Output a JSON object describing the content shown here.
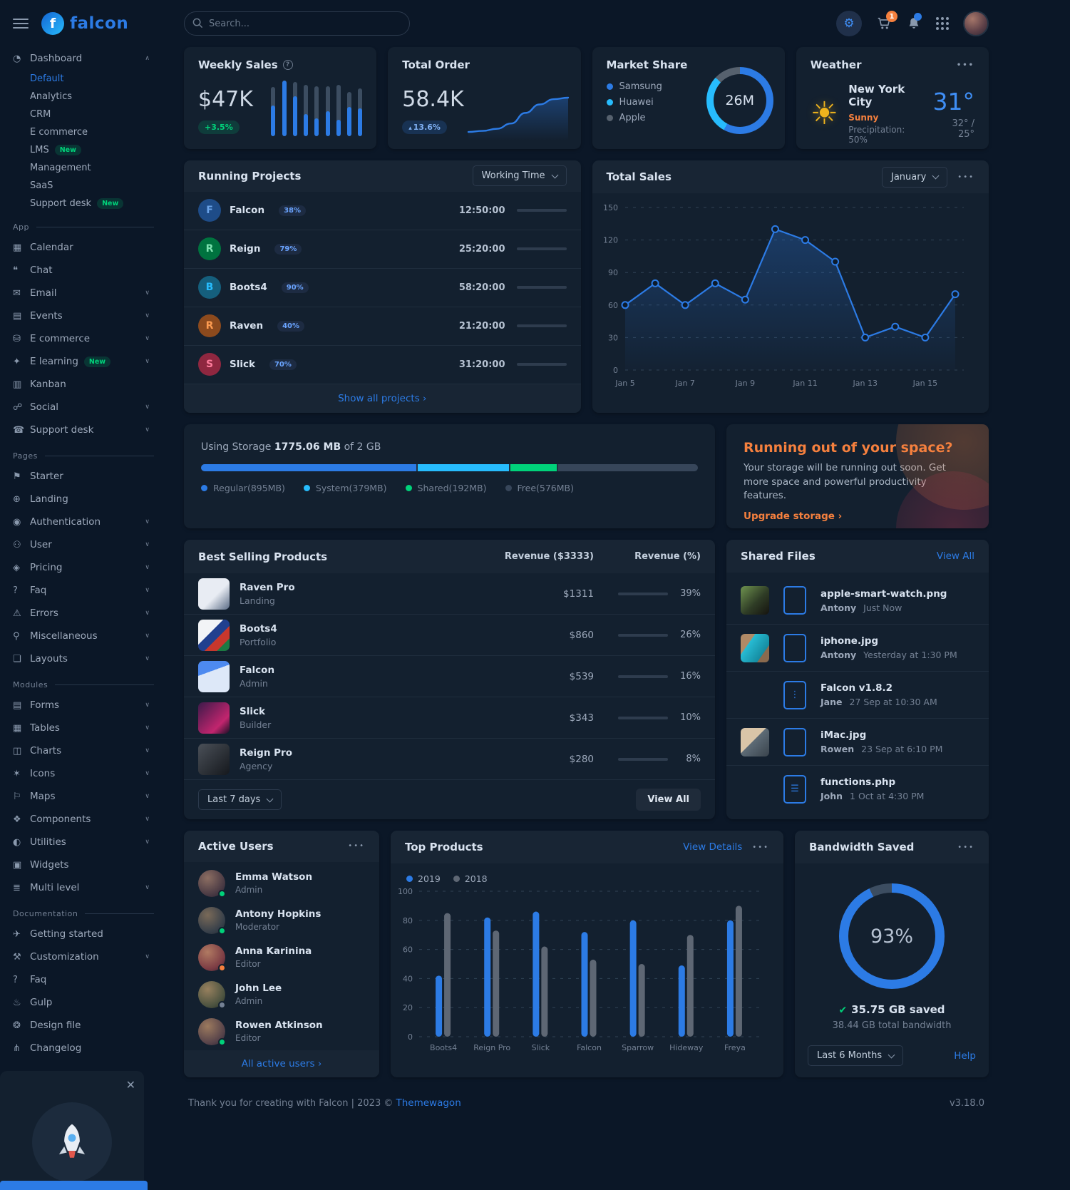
{
  "brand": {
    "name": "falcon"
  },
  "topnav": {
    "search_placeholder": "Search...",
    "cart_badge": "1"
  },
  "sidebar": {
    "dashboard": {
      "icon": "◔",
      "label": "Dashboard",
      "caret": "∧",
      "children": [
        {
          "label": "Default",
          "badge": "",
          "color": "#2c7be5"
        },
        {
          "label": "Analytics",
          "badge": "",
          "color": ""
        },
        {
          "label": "CRM",
          "badge": "",
          "color": ""
        },
        {
          "label": "E commerce",
          "badge": "",
          "color": ""
        },
        {
          "label": "LMS",
          "badge": "New",
          "color": ""
        },
        {
          "label": "Management",
          "badge": "",
          "color": ""
        },
        {
          "label": "SaaS",
          "badge": "",
          "color": ""
        },
        {
          "label": "Support desk",
          "badge": "New",
          "color": ""
        }
      ]
    },
    "sections": [
      {
        "heading": "App",
        "items": [
          {
            "icon": "▦",
            "label": "Calendar",
            "badge": "",
            "caret": ""
          },
          {
            "icon": "❝",
            "label": "Chat",
            "badge": "",
            "caret": ""
          },
          {
            "icon": "✉",
            "label": "Email",
            "badge": "",
            "caret": "∨"
          },
          {
            "icon": "▤",
            "label": "Events",
            "badge": "",
            "caret": "∨"
          },
          {
            "icon": "⛁",
            "label": "E commerce",
            "badge": "",
            "caret": "∨"
          },
          {
            "icon": "✦",
            "label": "E learning",
            "badge": "New",
            "caret": "∨"
          },
          {
            "icon": "▥",
            "label": "Kanban",
            "badge": "",
            "caret": ""
          },
          {
            "icon": "☍",
            "label": "Social",
            "badge": "",
            "caret": "∨"
          },
          {
            "icon": "☎",
            "label": "Support desk",
            "badge": "",
            "caret": "∨"
          }
        ]
      },
      {
        "heading": "Pages",
        "items": [
          {
            "icon": "⚑",
            "label": "Starter",
            "badge": "",
            "caret": ""
          },
          {
            "icon": "⊕",
            "label": "Landing",
            "badge": "",
            "caret": ""
          },
          {
            "icon": "◉",
            "label": "Authentication",
            "badge": "",
            "caret": "∨"
          },
          {
            "icon": "⚇",
            "label": "User",
            "badge": "",
            "caret": "∨"
          },
          {
            "icon": "◈",
            "label": "Pricing",
            "badge": "",
            "caret": "∨"
          },
          {
            "icon": "?",
            "label": "Faq",
            "badge": "",
            "caret": "∨"
          },
          {
            "icon": "⚠",
            "label": "Errors",
            "badge": "",
            "caret": "∨"
          },
          {
            "icon": "⚲",
            "label": "Miscellaneous",
            "badge": "",
            "caret": "∨"
          },
          {
            "icon": "❏",
            "label": "Layouts",
            "badge": "",
            "caret": "∨"
          }
        ]
      },
      {
        "heading": "Modules",
        "items": [
          {
            "icon": "▤",
            "label": "Forms",
            "badge": "",
            "caret": "∨"
          },
          {
            "icon": "▦",
            "label": "Tables",
            "badge": "",
            "caret": "∨"
          },
          {
            "icon": "◫",
            "label": "Charts",
            "badge": "",
            "caret": "∨"
          },
          {
            "icon": "✶",
            "label": "Icons",
            "badge": "",
            "caret": "∨"
          },
          {
            "icon": "⚐",
            "label": "Maps",
            "badge": "",
            "caret": "∨"
          },
          {
            "icon": "❖",
            "label": "Components",
            "badge": "",
            "caret": "∨"
          },
          {
            "icon": "◐",
            "label": "Utilities",
            "badge": "",
            "caret": "∨"
          },
          {
            "icon": "▣",
            "label": "Widgets",
            "badge": "",
            "caret": ""
          },
          {
            "icon": "≣",
            "label": "Multi level",
            "badge": "",
            "caret": "∨"
          }
        ]
      },
      {
        "heading": "Documentation",
        "items": [
          {
            "icon": "✈",
            "label": "Getting started",
            "badge": "",
            "caret": ""
          },
          {
            "icon": "⚒",
            "label": "Customization",
            "badge": "",
            "caret": "∨"
          },
          {
            "icon": "?",
            "label": "Faq",
            "badge": "",
            "caret": ""
          },
          {
            "icon": "♨",
            "label": "Gulp",
            "badge": "",
            "caret": ""
          },
          {
            "icon": "❂",
            "label": "Design file",
            "badge": "",
            "caret": ""
          },
          {
            "icon": "⋔",
            "label": "Changelog",
            "badge": "",
            "caret": ""
          }
        ]
      }
    ]
  },
  "cards": {
    "weekly_sales": {
      "title": "Weekly Sales",
      "value": "$47K",
      "badge": "+3.5%"
    },
    "total_order": {
      "title": "Total Order",
      "value": "58.4K",
      "badge": "13.6%"
    },
    "market_share": {
      "title": "Market Share"
    },
    "weather": {
      "title": "Weather",
      "city": "New York City",
      "condition": "Sunny",
      "precipitation": "Precipitation: 50%",
      "temp": "31°",
      "range": "32° / 25°"
    },
    "running_projects": {
      "title": "Running Projects",
      "filter": "Working Time",
      "footer_link": "Show all projects ›",
      "rows": [
        {
          "initial": "F",
          "name": "Falcon",
          "pct": "38%",
          "time": "12:50:00",
          "bar": "38%",
          "avatar_bg": "#1e4c88",
          "avatar_fg": "#6aa3e8"
        },
        {
          "initial": "R",
          "name": "Reign",
          "pct": "79%",
          "time": "25:20:00",
          "bar": "79%",
          "avatar_bg": "#00733f",
          "avatar_fg": "#7ee2b0"
        },
        {
          "initial": "B",
          "name": "Boots4",
          "pct": "90%",
          "time": "58:20:00",
          "bar": "90%",
          "avatar_bg": "#155f7d",
          "avatar_fg": "#27bcfd"
        },
        {
          "initial": "R",
          "name": "Raven",
          "pct": "40%",
          "time": "21:20:00",
          "bar": "40%",
          "avatar_bg": "#8c4a1d",
          "avatar_fg": "#fd9c51"
        },
        {
          "initial": "S",
          "name": "Slick",
          "pct": "70%",
          "time": "31:20:00",
          "bar": "70%",
          "avatar_bg": "#8f2740",
          "avatar_fg": "#ff7d9d"
        }
      ]
    },
    "total_sales": {
      "title": "Total Sales",
      "filter": "January"
    },
    "storage": {
      "label": "Using Storage",
      "used": "1775.06 MB",
      "of": "of 2 GB",
      "segments": [
        {
          "label": "Regular(895MB)",
          "color": "#2c7be5",
          "pct": "43.7%"
        },
        {
          "label": "System(379MB)",
          "color": "#27bcfd",
          "pct": "18.5%"
        },
        {
          "label": "Shared(192MB)",
          "color": "#00d27a",
          "pct": "9.4%"
        },
        {
          "label": "Free(576MB)",
          "color": "#37465a",
          "pct": "28.4%"
        }
      ]
    },
    "space_promo": {
      "title": "Running out of your space?",
      "body": "Your storage will be running out soon. Get more space and powerful productivity features.",
      "link": "Upgrade storage ›"
    },
    "best_selling": {
      "title": "Best Selling Products",
      "col_revenue": "Revenue ($3333)",
      "col_pct": "Revenue (%)",
      "filter": "Last 7 days",
      "view_all": "View All",
      "rows": [
        {
          "name": "Raven Pro",
          "category": "Landing",
          "revenue": "$1311",
          "pct": "39%",
          "bar": "39%",
          "thumb": "linear-gradient(135deg,#e8ecf3 55%,#5a6b85)"
        },
        {
          "name": "Boots4",
          "category": "Portfolio",
          "revenue": "$860",
          "pct": "26%",
          "bar": "26%",
          "thumb": "linear-gradient(135deg,#f2f4f6 40%,#21408f 40%,#21408f 60%,#c8372d 60%,#c8372d 80%,#1c7a43 80%)"
        },
        {
          "name": "Falcon",
          "category": "Admin",
          "revenue": "$539",
          "pct": "16%",
          "bar": "16%",
          "thumb": "linear-gradient(160deg,#4d8af0 35%,#dde8f8 35%)"
        },
        {
          "name": "Slick",
          "category": "Builder",
          "revenue": "$343",
          "pct": "10%",
          "bar": "10%",
          "thumb": "linear-gradient(135deg,#3c1a4a,#c2256e 70%,#1a1026)"
        },
        {
          "name": "Reign Pro",
          "category": "Agency",
          "revenue": "$280",
          "pct": "8%",
          "bar": "8%",
          "thumb": "linear-gradient(135deg,#4a5058,#15181d)"
        }
      ]
    },
    "shared_files": {
      "title": "Shared Files",
      "view_all": "View All",
      "rows": [
        {
          "name": "apple-smart-watch.png",
          "user": "Antony",
          "time": "Just Now",
          "icon": "",
          "thumb": "linear-gradient(135deg,#6f934f,#2f3d26 55%,#15130f)"
        },
        {
          "name": "iphone.jpg",
          "user": "Antony",
          "time": "Yesterday at 1:30 PM",
          "icon": "",
          "thumb": "linear-gradient(125deg,#b08a66 30%,#27bcd4 30%,#158ba0 75%,#8a6a4e 75%)"
        },
        {
          "name": "Falcon v1.8.2",
          "user": "Jane",
          "time": "27 Sep at 10:30 AM",
          "icon": "⋮",
          "thumb": ""
        },
        {
          "name": "iMac.jpg",
          "user": "Rowen",
          "time": "23 Sep at 6:10 PM",
          "icon": "",
          "thumb": "linear-gradient(135deg,#d9c5a8 45%,#5d6b76 45%,#39434c)"
        },
        {
          "name": "functions.php",
          "user": "John",
          "time": "1 Oct at 4:30 PM",
          "icon": "☰",
          "thumb": ""
        }
      ]
    },
    "active_users": {
      "title": "Active Users",
      "footer_link": "All active users ›",
      "rows": [
        {
          "name": "Emma Watson",
          "role": "Admin",
          "status_color": "#00d27a"
        },
        {
          "name": "Antony Hopkins",
          "role": "Moderator",
          "status_color": "#00d27a"
        },
        {
          "name": "Anna Karinina",
          "role": "Editor",
          "status_color": "#f5803e"
        },
        {
          "name": "John Lee",
          "role": "Admin",
          "status_color": "#748194"
        },
        {
          "name": "Rowen Atkinson",
          "role": "Editor",
          "status_color": "#00d27a"
        }
      ]
    },
    "top_products": {
      "title": "Top Products",
      "view_details": "View Details"
    },
    "bandwidth": {
      "title": "Bandwidth Saved",
      "saved": "35.75 GB saved",
      "total": "38.44 GB total bandwidth",
      "filter": "Last 6 Months",
      "help": "Help"
    }
  },
  "footer": {
    "thanks": "Thank you for creating with Falcon | 2023 © ",
    "brand_link": "Themewagon",
    "version": "v3.18.0"
  },
  "chart_data": {
    "weekly_sales_bars": {
      "type": "bar",
      "title": "Weekly Sales",
      "track_values": [
        88,
        100,
        97,
        92,
        90,
        90,
        92,
        80,
        86
      ],
      "series": [
        {
          "name": "sales",
          "values": [
            55,
            100,
            72,
            40,
            32,
            45,
            30,
            52,
            50
          ]
        }
      ],
      "colors": {
        "fill": "#2c7be5",
        "track": "#3c4d61"
      }
    },
    "total_order_spark": {
      "type": "line",
      "title": "Total Order trend",
      "values": [
        2,
        2.5,
        3.5,
        6,
        11,
        15,
        17.5,
        18.2
      ],
      "color": "#2c7be5"
    },
    "market_share": {
      "type": "pie",
      "center_label": "26M",
      "slices": [
        {
          "label": "Samsung",
          "value": 58,
          "color": "#2c7be5"
        },
        {
          "label": "Huawei",
          "value": 29,
          "color": "#27bcfd"
        },
        {
          "label": "Apple",
          "value": 13,
          "color": "#56616e"
        }
      ]
    },
    "total_sales": {
      "type": "line",
      "title": "Total Sales",
      "x": [
        "Jan 5",
        "Jan 6",
        "Jan 7",
        "Jan 8",
        "Jan 9",
        "Jan 10",
        "Jan 11",
        "Jan 12",
        "Jan 13",
        "Jan 14",
        "Jan 15",
        "Jan 16"
      ],
      "values": [
        60,
        80,
        60,
        80,
        65,
        130,
        120,
        100,
        30,
        40,
        30,
        70
      ],
      "x_tick_labels": [
        "Jan 5",
        "Jan 7",
        "Jan 9",
        "Jan 11",
        "Jan 13",
        "Jan 15"
      ],
      "ylim": [
        0,
        150
      ],
      "yticks": [
        0,
        30,
        60,
        90,
        120,
        150
      ],
      "line_color": "#2c7be5"
    },
    "top_products": {
      "type": "bar",
      "title": "Top Products",
      "categories": [
        "Boots4",
        "Reign Pro",
        "Slick",
        "Falcon",
        "Sparrow",
        "Hideway",
        "Freya"
      ],
      "series": [
        {
          "name": "2019",
          "color": "#2c7be5",
          "values": [
            42,
            82,
            86,
            72,
            80,
            49,
            80
          ]
        },
        {
          "name": "2018",
          "color": "#5e6774",
          "values": [
            85,
            73,
            62,
            53,
            50,
            70,
            90
          ]
        }
      ],
      "ylim": [
        0,
        100
      ],
      "yticks": [
        0,
        20,
        40,
        60,
        80,
        100
      ],
      "legend_position": "top-left"
    },
    "bandwidth": {
      "type": "pie",
      "center_label": "93%",
      "slices": [
        {
          "label": "saved",
          "value": 93,
          "color": "#2c7be5"
        },
        {
          "label": "remaining",
          "value": 7,
          "color": "#3c4d61"
        }
      ]
    }
  }
}
